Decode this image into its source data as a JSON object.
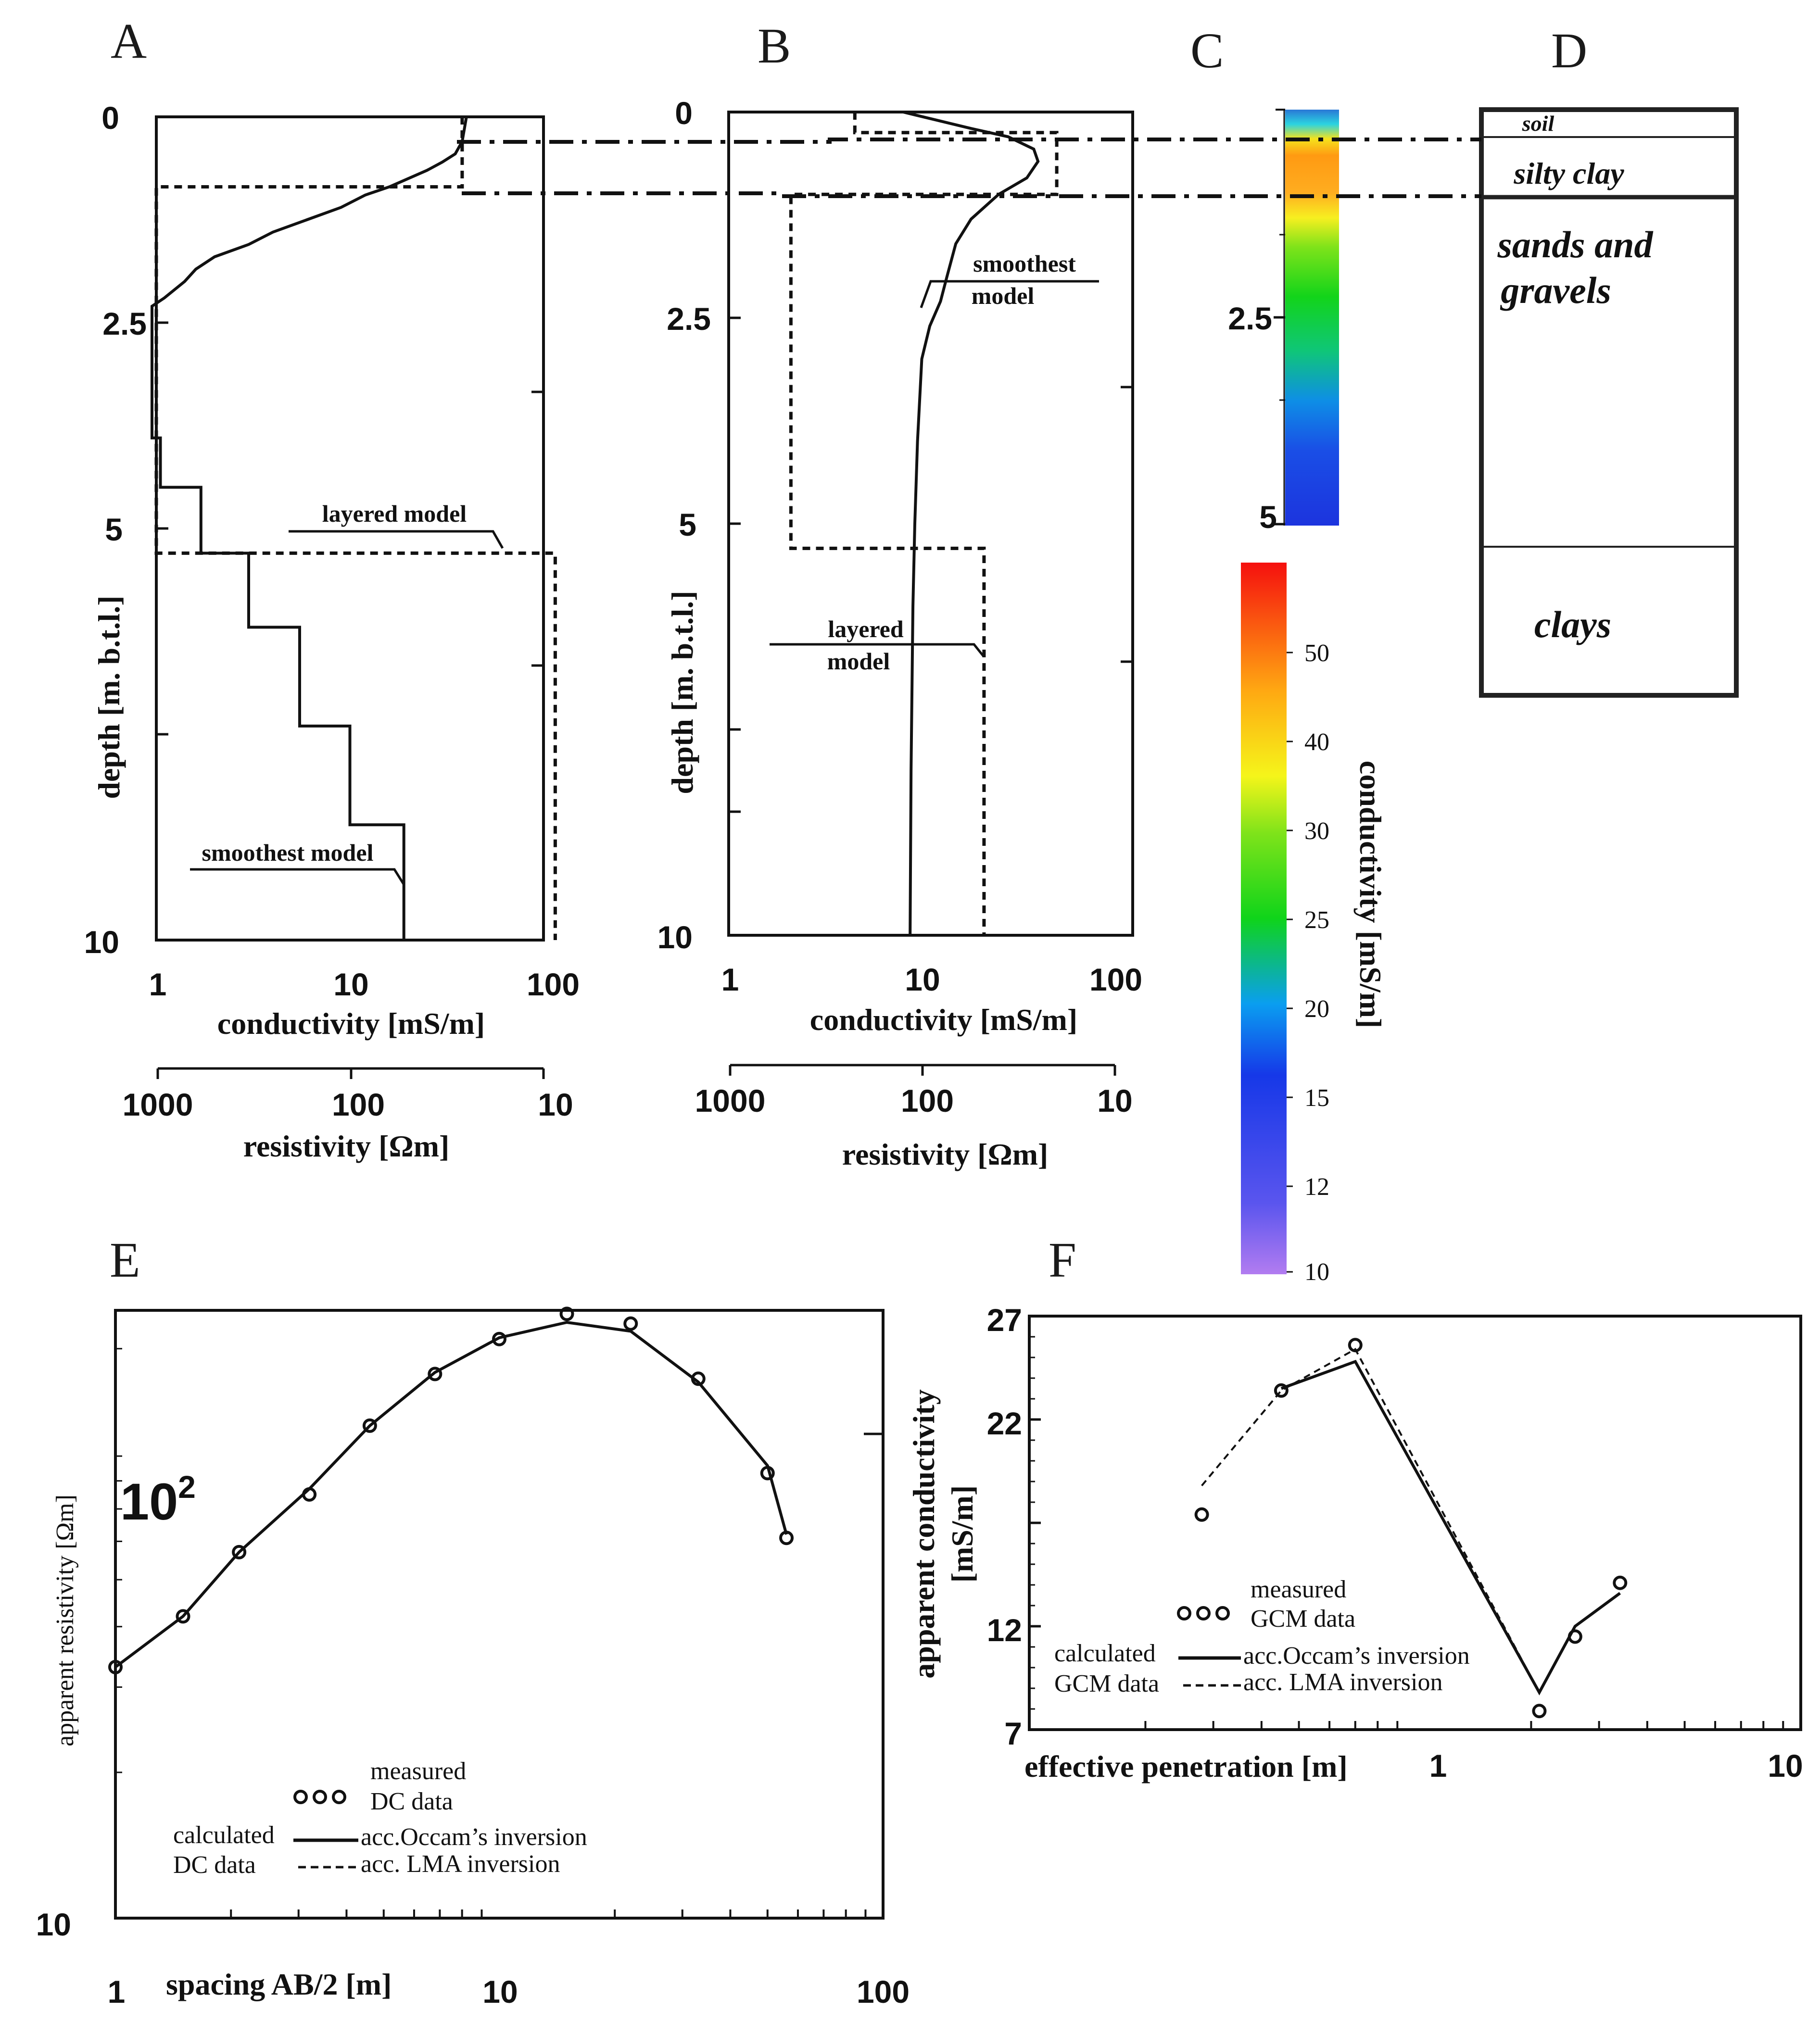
{
  "panels": {
    "A": {
      "letter": "A",
      "x_label": "conductivity [mS/m]",
      "x2_label": "resistivity [Ωm]",
      "y_label": "depth [m. b.t.l.]",
      "y_ticks": [
        "0",
        "2.5",
        "5",
        "10"
      ],
      "x_ticks": [
        "1",
        "10",
        "100"
      ],
      "x2_ticks": [
        "1000",
        "100",
        "10"
      ],
      "ann_layered": "layered model",
      "ann_smooth": "smoothest model"
    },
    "B": {
      "letter": "B",
      "x_label": "conductivity [mS/m]",
      "x2_label": "resistivity [Ωm]",
      "y_label": "depth [m. b.t.l.]",
      "y_ticks": [
        "0",
        "2.5",
        "5",
        "10"
      ],
      "x_ticks": [
        "1",
        "10",
        "100"
      ],
      "x2_ticks": [
        "1000",
        "100",
        "10"
      ],
      "ann_smooth": [
        "smoothest",
        "model"
      ],
      "ann_layered": [
        "layered",
        "model"
      ]
    },
    "C": {
      "letter": "C",
      "y_ticks": [
        "2.5",
        "5"
      ],
      "colorbar_title": "conductivity [mS/m]",
      "colorbar_ticks": [
        "50",
        "40",
        "30",
        "25",
        "20",
        "15",
        "12",
        "10"
      ]
    },
    "D": {
      "letter": "D",
      "layers": [
        "soil",
        "silty clay",
        "sands and",
        "gravels",
        "clays"
      ]
    },
    "E": {
      "letter": "E",
      "x_label": "spacing AB/2 [m]",
      "y_label": "apparent resistivity [Ωm]",
      "x_ticks": [
        "1",
        "10",
        "100"
      ],
      "y_tick_10": "10",
      "y_tick_102_base": "10",
      "y_tick_102_exp": "2",
      "legend": {
        "measured_1": "measured",
        "measured_2": "DC data",
        "calc_1": "calculated",
        "calc_2": "DC data",
        "occam": "acc.Occam’s inversion",
        "lma": "acc. LMA inversion"
      }
    },
    "F": {
      "letter": "F",
      "x_label": "effective  penetration [m]",
      "y_label_1": "apparent conductivity",
      "y_label_2": "[mS/m]",
      "x_ticks": [
        "1",
        "10"
      ],
      "y_ticks": [
        "27",
        "22",
        "12",
        "7"
      ],
      "legend": {
        "measured_1": "measured",
        "measured_2": "GCM data",
        "calc_1": "calculated",
        "calc_2": "GCM data",
        "occam": "acc.Occam’s inversion",
        "lma": "acc. LMA inversion"
      }
    }
  },
  "colors": {
    "line": "#111111",
    "frame": "#1a1a1a"
  },
  "chart_data": [
    {
      "id": "A",
      "type": "line",
      "title": "A",
      "xlabel": "conductivity [mS/m]",
      "ylabel": "depth [m. b.t.l.]",
      "xscale": "log",
      "xlim": [
        1,
        100
      ],
      "ylim": [
        10,
        0
      ],
      "series": [
        {
          "name": "smoothest model",
          "style": "solid",
          "x": [
            40,
            38,
            35,
            30,
            25,
            20,
            16,
            12,
            9,
            6,
            4,
            3,
            2,
            1.6,
            1.4,
            1.1,
            0.95,
            0.95,
            1.05,
            1.05,
            1.7,
            1.7,
            3,
            3,
            5.5,
            5.5,
            10,
            10,
            19,
            19
          ],
          "y": [
            0,
            0.3,
            0.45,
            0.55,
            0.65,
            0.75,
            0.85,
            0.95,
            1.1,
            1.25,
            1.4,
            1.55,
            1.7,
            1.85,
            2.0,
            2.2,
            2.3,
            3.9,
            3.9,
            4.5,
            4.5,
            5.3,
            5.3,
            6.2,
            6.2,
            7.4,
            7.4,
            8.6,
            8.6,
            10
          ]
        },
        {
          "name": "layered model",
          "style": "dashed",
          "x": [
            38,
            38,
            1,
            1,
            115,
            115
          ],
          "y": [
            0,
            0.85,
            0.85,
            5.3,
            5.3,
            10
          ]
        }
      ]
    },
    {
      "id": "B",
      "type": "line",
      "title": "B",
      "xlabel": "conductivity [mS/m]",
      "ylabel": "depth [m. b.t.l.]",
      "xscale": "log",
      "xlim": [
        1,
        100
      ],
      "ylim": [
        10,
        0
      ],
      "series": [
        {
          "name": "smoothest model",
          "style": "solid",
          "x": [
            8,
            12,
            18,
            28,
            38,
            40,
            35,
            25,
            18,
            15,
            13.5,
            12.5,
            11,
            10,
            9.5,
            9.2,
            9,
            8.8,
            8.7
          ],
          "y": [
            0,
            0.1,
            0.2,
            0.3,
            0.45,
            0.6,
            0.8,
            1.0,
            1.3,
            1.6,
            2.0,
            2.3,
            2.6,
            3.0,
            4.0,
            5.0,
            6.0,
            8.0,
            10
          ]
        },
        {
          "name": "layered model",
          "style": "dashed",
          "x": [
            4.5,
            4.5,
            50,
            50,
            2.1,
            2.1,
            21,
            21
          ],
          "y": [
            0,
            0.25,
            0.25,
            1.0,
            1.0,
            5.3,
            5.3,
            10
          ]
        }
      ]
    },
    {
      "id": "C",
      "type": "heatmap",
      "title": "C",
      "zlabel": "conductivity [mS/m]",
      "ylim": [
        5,
        0
      ],
      "zlim": [
        10,
        55
      ],
      "depth": [
        0,
        0.2,
        0.5,
        1.0,
        1.6,
        2.0,
        2.5,
        3.0,
        3.5,
        4.0,
        4.5,
        5.0
      ],
      "values": [
        14,
        22,
        38,
        40,
        30,
        25,
        21,
        19,
        17,
        15,
        13,
        12
      ]
    },
    {
      "id": "E",
      "type": "line",
      "title": "E",
      "xlabel": "spacing AB/2 [m]",
      "ylabel": "apparent resistivity [Ωm]",
      "xscale": "log",
      "yscale": "log",
      "xlim": [
        1,
        100
      ],
      "ylim": [
        10,
        180
      ],
      "series": [
        {
          "name": "measured DC data",
          "style": "markers",
          "x": [
            1,
            1.5,
            2.1,
            3.2,
            4.6,
            6.8,
            10,
            15,
            22,
            33,
            50,
            56
          ],
          "y": [
            33,
            42,
            57,
            75,
            104,
            133,
            157,
            177,
            169,
            130,
            83,
            61
          ]
        },
        {
          "name": "acc.Occam’s inversion",
          "style": "solid",
          "x": [
            1,
            1.5,
            2.1,
            3.2,
            4.6,
            6.8,
            10,
            15,
            22,
            33,
            50,
            56
          ],
          "y": [
            33,
            42,
            57,
            77,
            104,
            134,
            158,
            170,
            163,
            128,
            86,
            62
          ]
        },
        {
          "name": "acc. LMA inversion",
          "style": "dashed",
          "x": [
            1,
            1.5,
            2.1,
            3.2,
            4.6,
            6.8,
            10,
            15,
            22,
            33,
            50,
            56
          ],
          "y": [
            33,
            42,
            57,
            77,
            104,
            134,
            158,
            170,
            163,
            128,
            86,
            62
          ]
        }
      ]
    },
    {
      "id": "F",
      "type": "line",
      "title": "F",
      "xlabel": "effective  penetration [m]",
      "ylabel": "apparent conductivity [mS/m]",
      "xscale": "log",
      "xlim": [
        0.1,
        10
      ],
      "ylim": [
        7,
        27
      ],
      "series": [
        {
          "name": "measured GCM data",
          "style": "markers",
          "x": [
            0.28,
            0.45,
            0.7,
            2.1,
            2.6,
            3.4
          ],
          "y": [
            17.4,
            23.4,
            25.6,
            7.9,
            11.5,
            14.1
          ]
        },
        {
          "name": "acc.Occam’s inversion",
          "style": "solid",
          "x": [
            0.28,
            0.45,
            0.7,
            2.1,
            2.6,
            3.4
          ],
          "y": [
            null,
            23.5,
            24.8,
            8.8,
            12.0,
            13.6
          ]
        },
        {
          "name": "acc. LMA inversion",
          "style": "dashed",
          "x": [
            0.28,
            0.45,
            0.7,
            2.1,
            2.6,
            3.4
          ],
          "y": [
            18.8,
            23.4,
            25.4,
            8.8,
            12.0,
            13.6
          ]
        }
      ]
    }
  ]
}
